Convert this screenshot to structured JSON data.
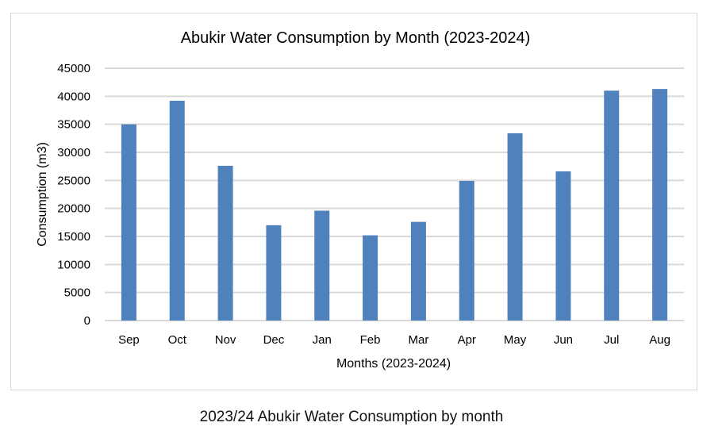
{
  "chart_data": {
    "type": "bar",
    "title": "Abukir Water Consumption by Month (2023-2024)",
    "xlabel": "Months (2023-2024)",
    "ylabel": "Consumption (m3)",
    "categories": [
      "Sep",
      "Oct",
      "Nov",
      "Dec",
      "Jan",
      "Feb",
      "Mar",
      "Apr",
      "May",
      "Jun",
      "Jul",
      "Aug"
    ],
    "values": [
      35000,
      39200,
      27600,
      17000,
      19600,
      15200,
      17600,
      24900,
      33400,
      26600,
      41000,
      41300
    ],
    "ylim": [
      0,
      45000
    ],
    "yticks": [
      "0",
      "5000",
      "10000",
      "15000",
      "20000",
      "25000",
      "30000",
      "35000",
      "40000",
      "45000"
    ],
    "grid": true,
    "legend": "none",
    "bar_color": "#4f81bd",
    "grid_color": "#d9d9d9"
  },
  "caption": "2023/24 Abukir Water Consumption by month"
}
